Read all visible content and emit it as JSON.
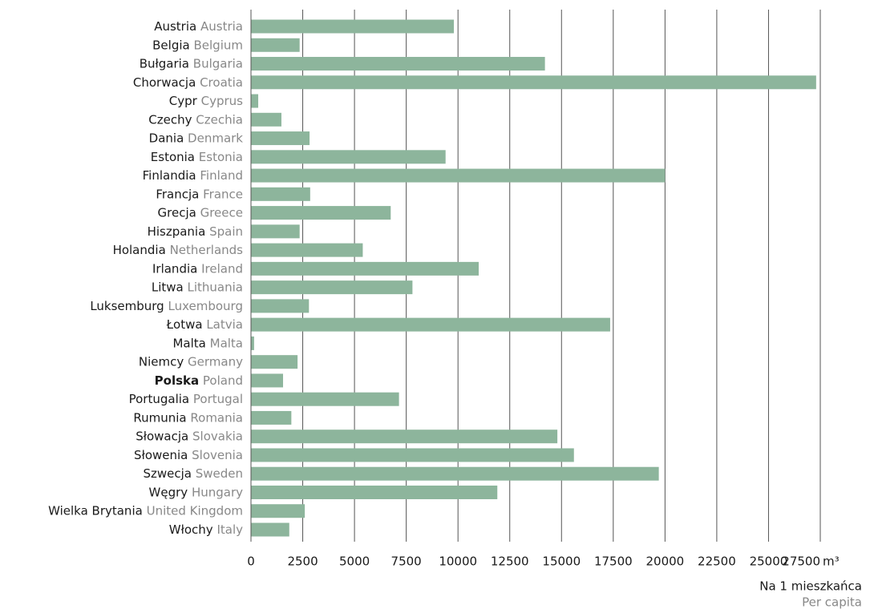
{
  "chart_data": {
    "type": "hbar",
    "categories": [
      "Austria",
      "Belgia",
      "Bułgaria",
      "Chorwacja",
      "Cypr",
      "Czechy",
      "Dania",
      "Estonia",
      "Finlandia",
      "Francja",
      "Grecja",
      "Hiszpania",
      "Holandia",
      "Irlandia",
      "Litwa",
      "Luksemburg",
      "Łotwa",
      "Malta",
      "Niemcy",
      "Polska",
      "Portugalia",
      "Rumunia",
      "Słowacja",
      "Słowenia",
      "Szwecja",
      "Węgry",
      "Wielka Brytania",
      "Włochy"
    ],
    "categories_en": [
      "Austria",
      "Belgium",
      "Bulgaria",
      "Croatia",
      "Cyprus",
      "Czechia",
      "Denmark",
      "Estonia",
      "Finland",
      "France",
      "Greece",
      "Spain",
      "Netherlands",
      "Ireland",
      "Lithuania",
      "Luxembourg",
      "Latvia",
      "Malta",
      "Germany",
      "Poland",
      "Portugal",
      "Romania",
      "Slovakia",
      "Slovenia",
      "Sweden",
      "Hungary",
      "United Kingdom",
      "Italy"
    ],
    "highlight_index": 19,
    "values": [
      9800,
      2350,
      14200,
      27300,
      350,
      1470,
      2830,
      9400,
      20000,
      2860,
      6750,
      2350,
      5400,
      11000,
      7800,
      2800,
      17350,
      150,
      2250,
      1550,
      7150,
      1950,
      14800,
      15600,
      19700,
      11900,
      2600,
      1850
    ],
    "color": "#8db59c",
    "xlim": [
      0,
      27500
    ],
    "xticks": [
      0,
      2500,
      5000,
      7500,
      10000,
      12500,
      15000,
      17500,
      20000,
      22500,
      25000,
      27500
    ],
    "x_unit": "m³",
    "xlabel": "Na 1 mieszkańca",
    "xlabel_en": "Per capita",
    "grid": true
  }
}
